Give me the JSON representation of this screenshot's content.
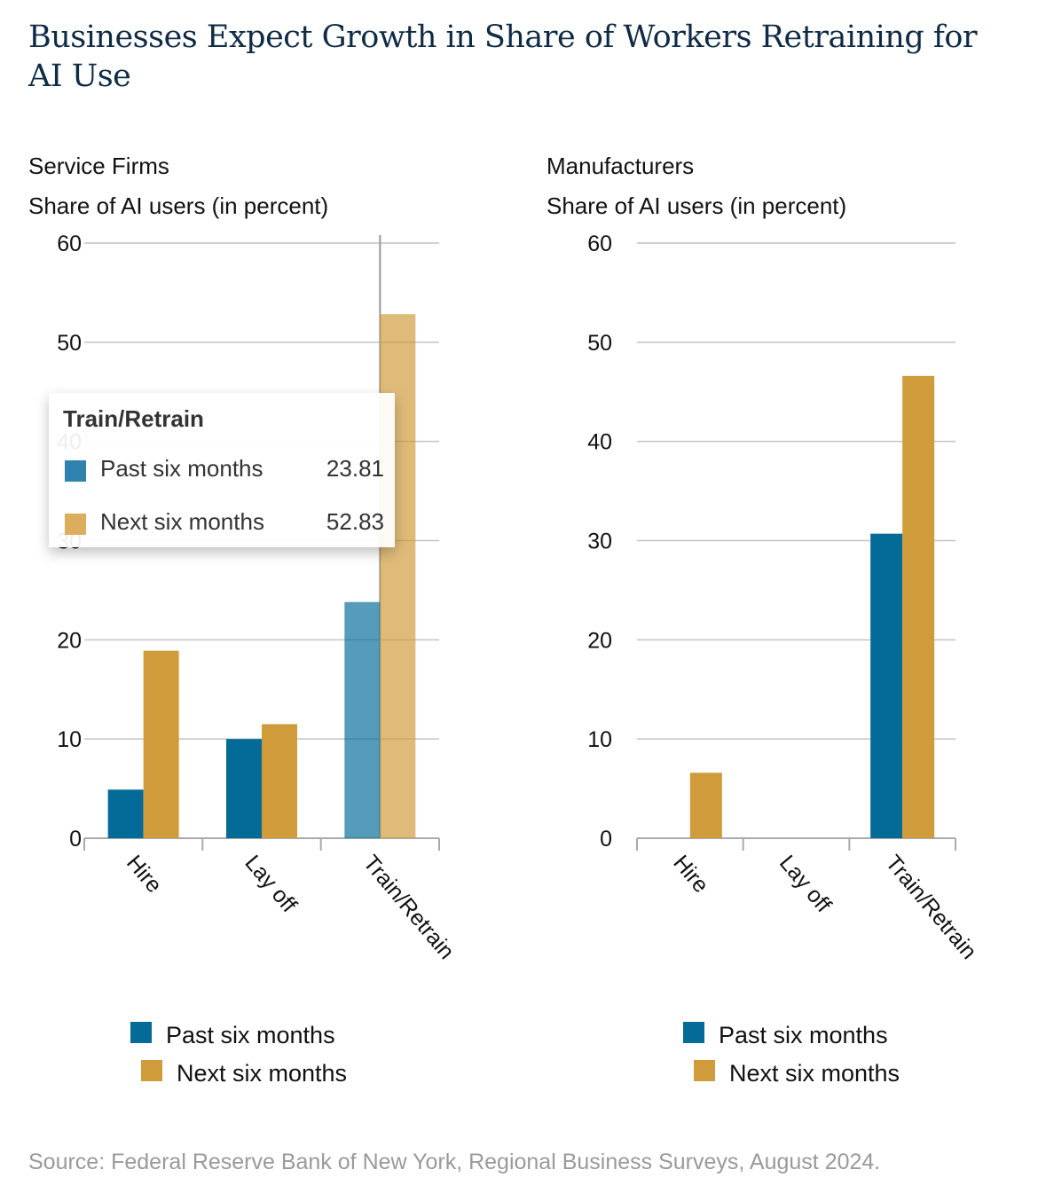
{
  "title": "Businesses Expect Growth in Share of Workers Retraining for AI Use",
  "source": "Source: Federal Reserve Bank of New York, Regional Business Surveys, August 2024.",
  "colors": {
    "past": "#046b99",
    "next": "#d09b3a"
  },
  "tooltip": {
    "category": "Train/Retrain",
    "rows": [
      {
        "label": "Past six months",
        "value": "23.81"
      },
      {
        "label": "Next six months",
        "value": "52.83"
      }
    ]
  },
  "chart_data": [
    {
      "type": "bar",
      "title": "Service Firms",
      "ylabel": "Share of AI users (in percent)",
      "categories": [
        "Hire",
        "Lay off",
        "Train/Retrain"
      ],
      "yticks": [
        "0",
        "10",
        "20",
        "30",
        "40",
        "50",
        "60"
      ],
      "ylim": [
        0,
        60
      ],
      "series": [
        {
          "name": "Past six months",
          "values": [
            4.9,
            10.0,
            23.81
          ]
        },
        {
          "name": "Next six months",
          "values": [
            18.9,
            11.5,
            52.83
          ]
        }
      ],
      "legend": "bottom"
    },
    {
      "type": "bar",
      "title": "Manufacturers",
      "ylabel": "Share of AI users (in percent)",
      "categories": [
        "Hire",
        "Lay off",
        "Train/Retrain"
      ],
      "yticks": [
        "0",
        "10",
        "20",
        "30",
        "40",
        "50",
        "60"
      ],
      "ylim": [
        0,
        60
      ],
      "series": [
        {
          "name": "Past six months",
          "values": [
            0,
            0,
            30.7
          ]
        },
        {
          "name": "Next six months",
          "values": [
            6.6,
            0,
            46.6
          ]
        }
      ],
      "legend": "bottom"
    }
  ]
}
